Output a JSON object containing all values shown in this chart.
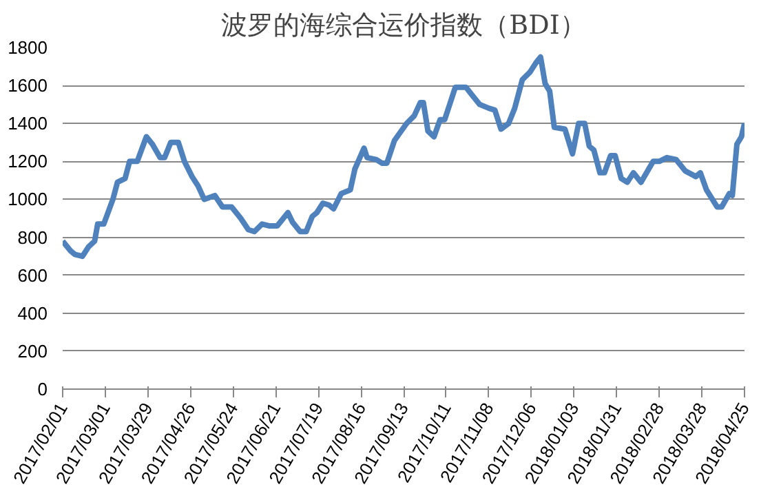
{
  "chart_data": {
    "type": "line",
    "title": "波罗的海综合运价指数（BDI）",
    "xlim": [
      "2017-02-01",
      "2018-04-25"
    ],
    "xticks": [
      {
        "value": "2017-02-01",
        "label": "2017/02/01"
      },
      {
        "value": "2017-03-01",
        "label": "2017/03/01"
      },
      {
        "value": "2017-03-29",
        "label": "2017/03/29"
      },
      {
        "value": "2017-04-26",
        "label": "2017/04/26"
      },
      {
        "value": "2017-05-24",
        "label": "2017/05/24"
      },
      {
        "value": "2017-06-21",
        "label": "2017/06/21"
      },
      {
        "value": "2017-07-19",
        "label": "2017/07/19"
      },
      {
        "value": "2017-08-16",
        "label": "2017/08/16"
      },
      {
        "value": "2017-09-13",
        "label": "2017/09/13"
      },
      {
        "value": "2017-10-11",
        "label": "2017/10/11"
      },
      {
        "value": "2017-11-08",
        "label": "2017/11/08"
      },
      {
        "value": "2017-12-06",
        "label": "2017/12/06"
      },
      {
        "value": "2018-01-03",
        "label": "2018/01/03"
      },
      {
        "value": "2018-01-31",
        "label": "2018/01/31"
      },
      {
        "value": "2018-02-28",
        "label": "2018/02/28"
      },
      {
        "value": "2018-03-28",
        "label": "2018/03/28"
      },
      {
        "value": "2018-04-25",
        "label": "2018/04/25"
      }
    ],
    "ylim": [
      0,
      1800
    ],
    "yticks": [
      0,
      200,
      400,
      600,
      800,
      1000,
      1200,
      1400,
      1600,
      1800
    ],
    "grid": "y",
    "marker": "none",
    "line_style": "solid",
    "series": [
      {
        "color": "#4f81bd",
        "x": [
          "2017-02-01",
          "2017-02-06",
          "2017-02-09",
          "2017-02-14",
          "2017-02-18",
          "2017-02-22",
          "2017-02-24",
          "2017-02-28",
          "2017-03-06",
          "2017-03-09",
          "2017-03-14",
          "2017-03-17",
          "2017-03-22",
          "2017-03-28",
          "2017-04-01",
          "2017-04-06",
          "2017-04-09",
          "2017-04-13",
          "2017-04-18",
          "2017-04-22",
          "2017-04-27",
          "2017-05-01",
          "2017-05-05",
          "2017-05-12",
          "2017-05-17",
          "2017-05-23",
          "2017-05-29",
          "2017-06-03",
          "2017-06-07",
          "2017-06-12",
          "2017-06-17",
          "2017-06-22",
          "2017-06-29",
          "2017-07-02",
          "2017-07-07",
          "2017-07-11",
          "2017-07-15",
          "2017-07-18",
          "2017-07-22",
          "2017-07-26",
          "2017-07-29",
          "2017-08-03",
          "2017-08-09",
          "2017-08-12",
          "2017-08-18",
          "2017-08-20",
          "2017-08-26",
          "2017-08-30",
          "2017-09-02",
          "2017-09-07",
          "2017-09-15",
          "2017-09-20",
          "2017-09-24",
          "2017-09-26",
          "2017-09-29",
          "2017-10-03",
          "2017-10-07",
          "2017-10-10",
          "2017-10-17",
          "2017-10-24",
          "2017-10-28",
          "2017-11-02",
          "2017-11-08",
          "2017-11-12",
          "2017-11-16",
          "2017-11-21",
          "2017-11-25",
          "2017-11-30",
          "2017-12-05",
          "2017-12-09",
          "2017-12-12",
          "2017-12-15",
          "2017-12-18",
          "2017-12-21",
          "2017-12-28",
          "2018-01-02",
          "2018-01-06",
          "2018-01-10",
          "2018-01-13",
          "2018-01-16",
          "2018-01-20",
          "2018-01-23",
          "2018-01-27",
          "2018-01-30",
          "2018-02-03",
          "2018-02-07",
          "2018-02-11",
          "2018-02-16",
          "2018-02-24",
          "2018-02-28",
          "2018-03-05",
          "2018-03-11",
          "2018-03-17",
          "2018-03-24",
          "2018-03-27",
          "2018-03-31",
          "2018-04-07",
          "2018-04-10",
          "2018-04-15",
          "2018-04-17",
          "2018-04-20",
          "2018-04-23",
          "2018-04-25"
        ],
        "values": [
          780,
          730,
          710,
          700,
          750,
          780,
          870,
          870,
          1000,
          1090,
          1110,
          1200,
          1200,
          1330,
          1290,
          1220,
          1220,
          1300,
          1300,
          1200,
          1120,
          1070,
          1000,
          1020,
          960,
          960,
          900,
          840,
          830,
          870,
          860,
          860,
          930,
          880,
          830,
          830,
          910,
          930,
          980,
          970,
          950,
          1030,
          1050,
          1160,
          1270,
          1220,
          1210,
          1190,
          1190,
          1310,
          1400,
          1440,
          1510,
          1510,
          1360,
          1330,
          1420,
          1420,
          1590,
          1590,
          1550,
          1500,
          1480,
          1470,
          1370,
          1400,
          1480,
          1630,
          1670,
          1720,
          1750,
          1610,
          1570,
          1380,
          1370,
          1240,
          1400,
          1400,
          1280,
          1260,
          1140,
          1140,
          1230,
          1230,
          1110,
          1090,
          1140,
          1090,
          1200,
          1200,
          1220,
          1210,
          1150,
          1120,
          1140,
          1050,
          960,
          960,
          1030,
          1020,
          1290,
          1330,
          1400
        ]
      }
    ]
  }
}
